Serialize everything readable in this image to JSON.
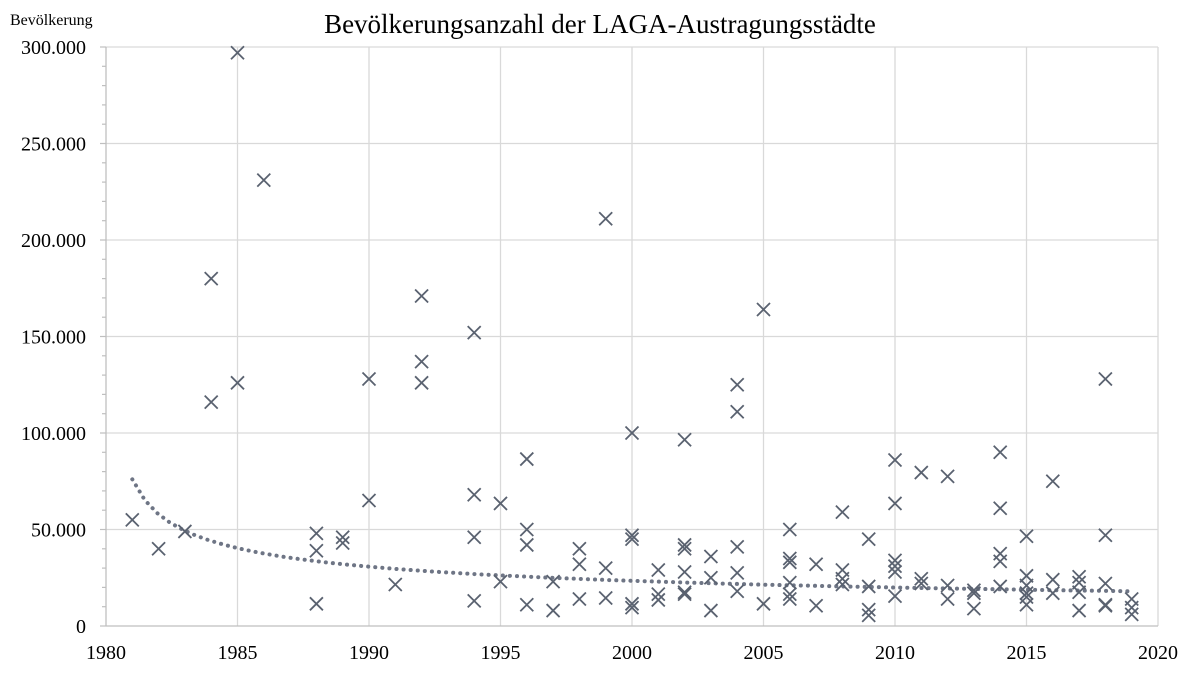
{
  "chart_data": {
    "type": "scatter",
    "title": "Bevölkerungsanzahl der LAGA-Austragungsstädte",
    "ylabel": "Bevölkerung",
    "xlabel": "",
    "xlim": [
      1980,
      2020
    ],
    "ylim": [
      0,
      300000
    ],
    "x_ticks": [
      1980,
      1985,
      1990,
      1995,
      2000,
      2005,
      2010,
      2015,
      2020
    ],
    "x_tick_labels": [
      "1980",
      "1985",
      "1990",
      "1995",
      "2000",
      "2005",
      "2010",
      "2015",
      "2020"
    ],
    "y_ticks": [
      0,
      50000,
      100000,
      150000,
      200000,
      250000,
      300000
    ],
    "y_tick_labels": [
      "0",
      "50.000",
      "100.000",
      "150.000",
      "200.000",
      "250.000",
      "300.000"
    ],
    "grid": true,
    "marker": "x",
    "marker_color": "#5a6270",
    "trendline": {
      "type": "power",
      "style": "dotted",
      "color": "#6e7585",
      "x": [
        1981,
        2019
      ],
      "y": [
        76000,
        18000
      ]
    },
    "series": [
      {
        "points": [
          [
            1981,
            55000
          ],
          [
            1982,
            40000
          ],
          [
            1983,
            49000
          ],
          [
            1984,
            180000
          ],
          [
            1984,
            116000
          ],
          [
            1985,
            297000
          ],
          [
            1985,
            126000
          ],
          [
            1986,
            231000
          ],
          [
            1988,
            48000
          ],
          [
            1988,
            39000
          ],
          [
            1988,
            11500
          ],
          [
            1989,
            46000
          ],
          [
            1989,
            43000
          ],
          [
            1990,
            128000
          ],
          [
            1990,
            65000
          ],
          [
            1991,
            21500
          ],
          [
            1992,
            171000
          ],
          [
            1992,
            137000
          ],
          [
            1992,
            126000
          ],
          [
            1994,
            152000
          ],
          [
            1994,
            68000
          ],
          [
            1994,
            46000
          ],
          [
            1994,
            13000
          ],
          [
            1995,
            63500
          ],
          [
            1995,
            23000
          ],
          [
            1996,
            86500
          ],
          [
            1996,
            50000
          ],
          [
            1996,
            42000
          ],
          [
            1996,
            11000
          ],
          [
            1997,
            23000
          ],
          [
            1997,
            8000
          ],
          [
            1998,
            40000
          ],
          [
            1998,
            32000
          ],
          [
            1998,
            14000
          ],
          [
            1999,
            211000
          ],
          [
            1999,
            30000
          ],
          [
            1999,
            14500
          ],
          [
            2000,
            100000
          ],
          [
            2000,
            47000
          ],
          [
            2000,
            45000
          ],
          [
            2000,
            11500
          ],
          [
            2000,
            9500
          ],
          [
            2001,
            29000
          ],
          [
            2001,
            16500
          ],
          [
            2001,
            13500
          ],
          [
            2002,
            96500
          ],
          [
            2002,
            42000
          ],
          [
            2002,
            40000
          ],
          [
            2002,
            28000
          ],
          [
            2002,
            17500
          ],
          [
            2002,
            16500
          ],
          [
            2003,
            36000
          ],
          [
            2003,
            25000
          ],
          [
            2003,
            8000
          ],
          [
            2004,
            125000
          ],
          [
            2004,
            111000
          ],
          [
            2004,
            41000
          ],
          [
            2004,
            27500
          ],
          [
            2004,
            18000
          ],
          [
            2005,
            164000
          ],
          [
            2005,
            11500
          ],
          [
            2006,
            50000
          ],
          [
            2006,
            35000
          ],
          [
            2006,
            33000
          ],
          [
            2006,
            22500
          ],
          [
            2006,
            16500
          ],
          [
            2006,
            14000
          ],
          [
            2007,
            32000
          ],
          [
            2007,
            10500
          ],
          [
            2008,
            59000
          ],
          [
            2008,
            29000
          ],
          [
            2008,
            24500
          ],
          [
            2008,
            21500
          ],
          [
            2009,
            45000
          ],
          [
            2009,
            20500
          ],
          [
            2009,
            8500
          ],
          [
            2009,
            5500
          ],
          [
            2010,
            86000
          ],
          [
            2010,
            63500
          ],
          [
            2010,
            34000
          ],
          [
            2010,
            31000
          ],
          [
            2010,
            28000
          ],
          [
            2010,
            15500
          ],
          [
            2011,
            79500
          ],
          [
            2011,
            24500
          ],
          [
            2011,
            22000
          ],
          [
            2012,
            77500
          ],
          [
            2012,
            21000
          ],
          [
            2012,
            14000
          ],
          [
            2013,
            18500
          ],
          [
            2013,
            17000
          ],
          [
            2013,
            9000
          ],
          [
            2014,
            90000
          ],
          [
            2014,
            61000
          ],
          [
            2014,
            37500
          ],
          [
            2014,
            33500
          ],
          [
            2014,
            20500
          ],
          [
            2015,
            46500
          ],
          [
            2015,
            26000
          ],
          [
            2015,
            21000
          ],
          [
            2015,
            17000
          ],
          [
            2015,
            15000
          ],
          [
            2015,
            11000
          ],
          [
            2016,
            75000
          ],
          [
            2016,
            24000
          ],
          [
            2016,
            17000
          ],
          [
            2017,
            25500
          ],
          [
            2017,
            22500
          ],
          [
            2017,
            17500
          ],
          [
            2017,
            8000
          ],
          [
            2018,
            128000
          ],
          [
            2018,
            47000
          ],
          [
            2018,
            22000
          ],
          [
            2018,
            11000
          ],
          [
            2018,
            10500
          ],
          [
            2019,
            14000
          ],
          [
            2019,
            9500
          ],
          [
            2019,
            6000
          ]
        ]
      }
    ]
  }
}
